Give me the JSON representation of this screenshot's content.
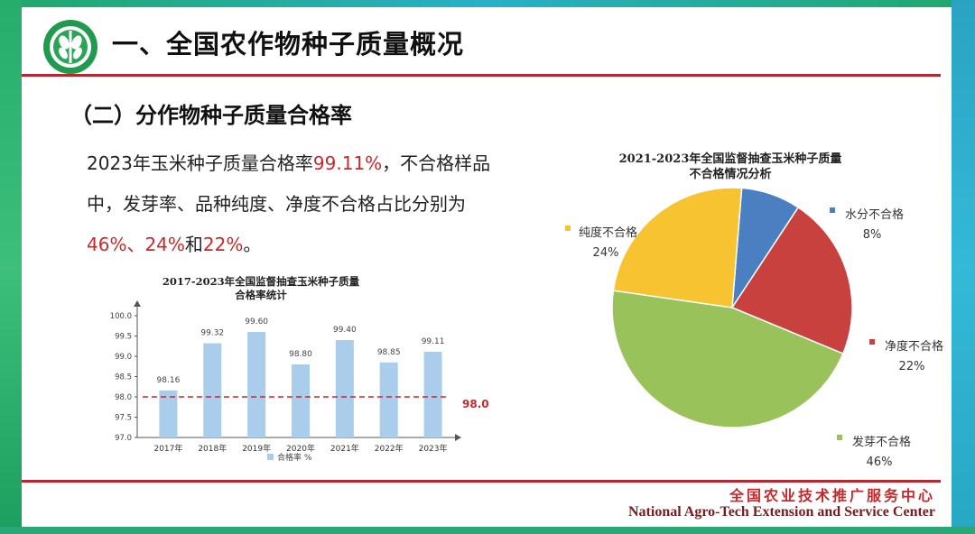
{
  "header": {
    "title": "一、全国农作物种子质量概况",
    "section_title": "（二）分作物种子质量合格率",
    "logo_icon": "seed-emblem-icon"
  },
  "summary": {
    "part1": "2023年玉米种子质量合格率",
    "rate": "99.11%",
    "part2": "，不合格样品中，发芽率、品种纯度、净度不合格占比分别为",
    "pct_germination": "46%",
    "sep1": "、",
    "pct_purity": "24%",
    "sep2": "和",
    "pct_cleanliness": "22%",
    "part3": "。"
  },
  "chart_data": [
    {
      "type": "bar",
      "title": "2017-2023年全国监督抽查玉米种子质量合格率统计",
      "title_lines": [
        "2017-2023年全国监督抽查玉米种子质量",
        "合格率统计"
      ],
      "categories": [
        "2017年",
        "2018年",
        "2019年",
        "2020年",
        "2021年",
        "2022年",
        "2023年"
      ],
      "series": [
        {
          "name": "合格率 %",
          "values": [
            98.16,
            99.32,
            99.6,
            98.8,
            99.4,
            98.85,
            99.11
          ]
        }
      ],
      "data_labels": [
        "98.16",
        "99.32",
        "99.60",
        "98.80",
        "99.40",
        "98.85",
        "99.11"
      ],
      "ylim": [
        97.0,
        100.0
      ],
      "yticks": [
        "97.0",
        "97.5",
        "98.0",
        "98.5",
        "99.0",
        "99.5",
        "100.0"
      ],
      "reference_line": {
        "value": 98.0,
        "label": "98.0",
        "color": "#c8282c"
      },
      "legend": {
        "label": "合格率 %",
        "position": "bottom"
      },
      "bar_color": "#a9cdea",
      "grid": false
    },
    {
      "type": "pie",
      "title": "2021-2023年全国监督抽查玉米种子质量不合格情况分析",
      "title_lines": [
        "2021-2023年全国监督抽查玉米种子质量",
        "不合格情况分析"
      ],
      "slices": [
        {
          "label": "水分不合格",
          "pct_label": "8%",
          "value": 8,
          "color": "#4a7fc1"
        },
        {
          "label": "净度不合格",
          "pct_label": "22%",
          "value": 22,
          "color": "#c8413e"
        },
        {
          "label": "发芽不合格",
          "pct_label": "46%",
          "value": 46,
          "color": "#9ac25a"
        },
        {
          "label": "纯度不合格",
          "pct_label": "24%",
          "value": 24,
          "color": "#f7c331"
        }
      ]
    }
  ],
  "footer": {
    "org_cn": "全国农业技术推广服务中心",
    "org_en": "National Agro-Tech Extension and Service Center"
  }
}
